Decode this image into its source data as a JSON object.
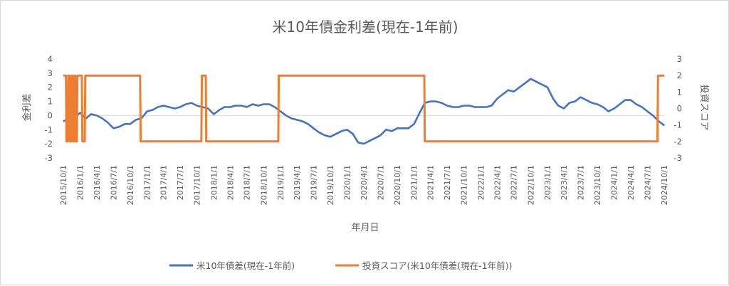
{
  "chart_data": {
    "type": "line",
    "title": "米10年債金利差(現在-1年前)",
    "xlabel": "年月日",
    "ylabel": "金利差",
    "y2label": "投資スコア",
    "ylim": [
      -3,
      4
    ],
    "y2lim": [
      -3,
      3
    ],
    "yticks": [
      "4",
      "3",
      "2",
      "1",
      "0",
      "-1",
      "-2",
      "-3"
    ],
    "y2ticks": [
      "3",
      "2",
      "1",
      "0",
      "-1",
      "-2",
      "-3"
    ],
    "x_range": [
      "2015/10/1",
      "2024/10/1"
    ],
    "xticks": [
      "2015/10/1",
      "2016/1/1",
      "2016/4/1",
      "2016/7/1",
      "2016/10/1",
      "2017/1/1",
      "2017/4/1",
      "2017/7/1",
      "2017/10/1",
      "2018/1/1",
      "2018/4/1",
      "2018/7/1",
      "2018/10/1",
      "2019/1/1",
      "2019/4/1",
      "2019/7/1",
      "2019/10/1",
      "2020/1/1",
      "2020/4/1",
      "2020/7/1",
      "2020/10/1",
      "2021/1/1",
      "2021/4/1",
      "2021/7/1",
      "2021/10/1",
      "2022/1/1",
      "2022/4/1",
      "2022/7/1",
      "2022/10/1",
      "2023/1/1",
      "2023/4/1",
      "2023/7/1",
      "2023/10/1",
      "2024/1/1",
      "2024/4/1",
      "2024/7/1",
      "2024/10/1"
    ],
    "grid": false,
    "legend_position": "bottom",
    "series": [
      {
        "name": "米10年債差(現在-1年前)",
        "axis": "left",
        "color": "#4472C4",
        "x": [
          "2015/10/1",
          "2015/11/1",
          "2015/12/1",
          "2016/1/1",
          "2016/2/1",
          "2016/3/1",
          "2016/4/1",
          "2016/5/1",
          "2016/6/1",
          "2016/7/1",
          "2016/8/1",
          "2016/9/1",
          "2016/10/1",
          "2016/11/1",
          "2016/12/1",
          "2017/1/1",
          "2017/2/1",
          "2017/3/1",
          "2017/4/1",
          "2017/5/1",
          "2017/6/1",
          "2017/7/1",
          "2017/8/1",
          "2017/9/1",
          "2017/10/1",
          "2017/11/1",
          "2017/12/1",
          "2018/1/1",
          "2018/2/1",
          "2018/3/1",
          "2018/4/1",
          "2018/5/1",
          "2018/6/1",
          "2018/7/1",
          "2018/8/1",
          "2018/9/1",
          "2018/10/1",
          "2018/11/1",
          "2018/12/1",
          "2019/1/1",
          "2019/2/1",
          "2019/3/1",
          "2019/4/1",
          "2019/5/1",
          "2019/6/1",
          "2019/7/1",
          "2019/8/1",
          "2019/9/1",
          "2019/10/1",
          "2019/11/1",
          "2019/12/1",
          "2020/1/1",
          "2020/2/1",
          "2020/3/1",
          "2020/4/1",
          "2020/5/1",
          "2020/6/1",
          "2020/7/1",
          "2020/8/1",
          "2020/9/1",
          "2020/10/1",
          "2020/11/1",
          "2020/12/1",
          "2021/1/1",
          "2021/2/1",
          "2021/3/1",
          "2021/4/1",
          "2021/5/1",
          "2021/6/1",
          "2021/7/1",
          "2021/8/1",
          "2021/9/1",
          "2021/10/1",
          "2021/11/1",
          "2021/12/1",
          "2022/1/1",
          "2022/2/1",
          "2022/3/1",
          "2022/4/1",
          "2022/5/1",
          "2022/6/1",
          "2022/7/1",
          "2022/8/1",
          "2022/9/1",
          "2022/10/1",
          "2022/11/1",
          "2022/12/1",
          "2023/1/1",
          "2023/2/1",
          "2023/3/1",
          "2023/4/1",
          "2023/5/1",
          "2023/6/1",
          "2023/7/1",
          "2023/8/1",
          "2023/9/1",
          "2023/10/1",
          "2023/11/1",
          "2023/12/1",
          "2024/1/1",
          "2024/2/1",
          "2024/3/1",
          "2024/4/1",
          "2024/5/1",
          "2024/6/1",
          "2024/7/1",
          "2024/8/1",
          "2024/9/1",
          "2024/10/1"
        ],
        "values": [
          -0.4,
          -0.2,
          -0.1,
          0.2,
          -0.2,
          0.1,
          0.0,
          -0.2,
          -0.5,
          -0.9,
          -0.8,
          -0.6,
          -0.6,
          -0.3,
          -0.2,
          0.3,
          0.4,
          0.6,
          0.7,
          0.6,
          0.5,
          0.6,
          0.8,
          0.9,
          0.7,
          0.6,
          0.5,
          0.1,
          0.4,
          0.6,
          0.6,
          0.7,
          0.7,
          0.6,
          0.8,
          0.7,
          0.8,
          0.8,
          0.6,
          0.3,
          0.0,
          -0.2,
          -0.3,
          -0.4,
          -0.6,
          -0.9,
          -1.2,
          -1.4,
          -1.5,
          -1.3,
          -1.1,
          -1.0,
          -1.3,
          -1.9,
          -2.0,
          -1.8,
          -1.6,
          -1.4,
          -1.0,
          -1.1,
          -0.9,
          -0.9,
          -0.9,
          -0.6,
          0.2,
          0.9,
          1.0,
          1.0,
          0.9,
          0.7,
          0.6,
          0.6,
          0.7,
          0.7,
          0.6,
          0.6,
          0.6,
          0.7,
          1.2,
          1.5,
          1.8,
          1.7,
          2.0,
          2.3,
          2.6,
          2.4,
          2.2,
          2.0,
          1.2,
          0.7,
          0.5,
          0.9,
          1.0,
          1.3,
          1.1,
          0.9,
          0.8,
          0.6,
          0.3,
          0.5,
          0.8,
          1.1,
          1.1,
          0.8,
          0.6,
          0.3,
          0.0,
          -0.4,
          -0.7
        ]
      },
      {
        "name": "投資スコア(米10年債差(現在-1年前))",
        "axis": "right",
        "color": "#ED7D31",
        "x": [
          "2015/10/1",
          "2015/10/15",
          "2015/10/18",
          "2015/10/25",
          "2015/10/28",
          "2015/11/3",
          "2015/11/6",
          "2015/11/12",
          "2015/11/15",
          "2015/11/20",
          "2015/11/23",
          "2015/11/28",
          "2015/12/1",
          "2015/12/5",
          "2015/12/8",
          "2015/12/14",
          "2015/12/17",
          "2016/1/10",
          "2016/1/13",
          "2016/1/26",
          "2016/1/29",
          "2016/11/24",
          "2016/11/27",
          "2017/10/25",
          "2017/10/28",
          "2017/11/18",
          "2017/11/21",
          "2018/12/20",
          "2018/12/23",
          "2021/2/26",
          "2021/3/1",
          "2024/8/25",
          "2024/8/28",
          "2024/10/1"
        ],
        "values": [
          2,
          2,
          -2,
          -2,
          2,
          2,
          -2,
          -2,
          2,
          2,
          -2,
          -2,
          2,
          2,
          -2,
          -2,
          2,
          2,
          -2,
          -2,
          2,
          2,
          -2,
          -2,
          2,
          2,
          -2,
          -2,
          2,
          2,
          -2,
          -2,
          2,
          2
        ]
      }
    ]
  }
}
